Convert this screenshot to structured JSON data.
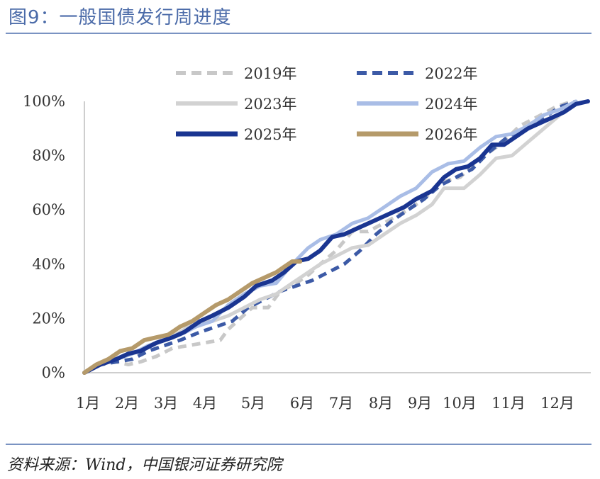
{
  "header": {
    "title": "图9：一般国债发行周进度"
  },
  "footer": {
    "source": "资料来源：Wind，中国银河证券研究院"
  },
  "chart_data": {
    "type": "line",
    "title": "图9：一般国债发行周进度",
    "ylim": [
      0,
      100
    ],
    "y_ticks": [
      "0%",
      "20%",
      "40%",
      "60%",
      "80%",
      "100%"
    ],
    "x_categories": [
      "1月",
      "2月",
      "3月",
      "4月",
      "5月",
      "6月",
      "7月",
      "8月",
      "9月",
      "10月",
      "11月",
      "12月"
    ],
    "x_range": [
      1,
      13.6
    ],
    "legend": {
      "placement": "top",
      "columns": 2
    },
    "grid": false,
    "series": [
      {
        "name": "2019年",
        "color": "#c8c8c8",
        "dash": "dashed",
        "width": 5,
        "points": [
          [
            1,
            0
          ],
          [
            1.4,
            3
          ],
          [
            1.8,
            4
          ],
          [
            2.1,
            3
          ],
          [
            2.4,
            4
          ],
          [
            2.8,
            6
          ],
          [
            3.2,
            9
          ],
          [
            3.6,
            10
          ],
          [
            4.0,
            11
          ],
          [
            4.4,
            12
          ],
          [
            4.6,
            16
          ],
          [
            4.9,
            20
          ],
          [
            5.2,
            24
          ],
          [
            5.6,
            24
          ],
          [
            5.9,
            30
          ],
          [
            6.3,
            33
          ],
          [
            6.6,
            36
          ],
          [
            6.9,
            40
          ],
          [
            7.3,
            45
          ],
          [
            7.7,
            52
          ],
          [
            8.1,
            52
          ],
          [
            8.6,
            56
          ],
          [
            9.1,
            60
          ],
          [
            9.5,
            64
          ],
          [
            9.9,
            70
          ],
          [
            10.4,
            72
          ],
          [
            10.9,
            79
          ],
          [
            11.4,
            84
          ],
          [
            11.9,
            91
          ],
          [
            12.3,
            94
          ],
          [
            12.8,
            98
          ],
          [
            13.2,
            100
          ]
        ]
      },
      {
        "name": "2022年",
        "color": "#3c5aa6",
        "dash": "dashed",
        "width": 5,
        "points": [
          [
            1,
            0
          ],
          [
            1.4,
            3
          ],
          [
            1.8,
            4
          ],
          [
            2.2,
            5
          ],
          [
            2.6,
            8
          ],
          [
            3.0,
            10
          ],
          [
            3.4,
            12
          ],
          [
            3.9,
            15
          ],
          [
            4.3,
            17
          ],
          [
            4.7,
            19
          ],
          [
            5.1,
            24
          ],
          [
            5.5,
            27
          ],
          [
            5.9,
            30
          ],
          [
            6.3,
            32
          ],
          [
            6.7,
            34
          ],
          [
            7.1,
            37
          ],
          [
            7.5,
            40
          ],
          [
            7.9,
            45
          ],
          [
            8.3,
            51
          ],
          [
            8.7,
            56
          ],
          [
            9.1,
            60
          ],
          [
            9.5,
            64
          ],
          [
            9.9,
            69
          ],
          [
            10.3,
            72
          ],
          [
            10.7,
            75
          ],
          [
            11.1,
            81
          ],
          [
            11.6,
            87
          ],
          [
            12.0,
            90
          ],
          [
            12.5,
            94
          ],
          [
            12.9,
            98
          ],
          [
            13.3,
            100
          ]
        ]
      },
      {
        "name": "2023年",
        "color": "#d2d2d2",
        "dash": "solid",
        "width": 5,
        "points": [
          [
            1,
            0
          ],
          [
            1.4,
            3
          ],
          [
            1.8,
            5
          ],
          [
            2.2,
            7
          ],
          [
            2.6,
            10
          ],
          [
            3.0,
            12
          ],
          [
            3.4,
            15
          ],
          [
            3.8,
            19
          ],
          [
            4.2,
            19
          ],
          [
            4.6,
            21
          ],
          [
            5.0,
            24
          ],
          [
            5.4,
            27
          ],
          [
            5.8,
            29
          ],
          [
            6.2,
            33
          ],
          [
            6.6,
            37
          ],
          [
            6.9,
            40
          ],
          [
            7.3,
            43
          ],
          [
            7.7,
            46
          ],
          [
            8.1,
            47
          ],
          [
            8.5,
            51
          ],
          [
            8.9,
            55
          ],
          [
            9.3,
            58
          ],
          [
            9.7,
            62
          ],
          [
            10.0,
            68
          ],
          [
            10.5,
            68
          ],
          [
            10.9,
            73
          ],
          [
            11.3,
            79
          ],
          [
            11.7,
            80
          ],
          [
            12.1,
            85
          ],
          [
            12.5,
            90
          ],
          [
            12.9,
            95
          ],
          [
            13.3,
            100
          ]
        ]
      },
      {
        "name": "2024年",
        "color": "#a9bde6",
        "dash": "solid",
        "width": 5,
        "points": [
          [
            1,
            0
          ],
          [
            1.4,
            3
          ],
          [
            1.8,
            5
          ],
          [
            2.2,
            7
          ],
          [
            2.6,
            10
          ],
          [
            3.0,
            12
          ],
          [
            3.4,
            14
          ],
          [
            3.8,
            17
          ],
          [
            4.2,
            19
          ],
          [
            4.6,
            25
          ],
          [
            5.0,
            29
          ],
          [
            5.4,
            32
          ],
          [
            5.8,
            33
          ],
          [
            6.2,
            40
          ],
          [
            6.6,
            46
          ],
          [
            6.9,
            49
          ],
          [
            7.3,
            51
          ],
          [
            7.7,
            55
          ],
          [
            8.1,
            57
          ],
          [
            8.5,
            61
          ],
          [
            8.9,
            65
          ],
          [
            9.3,
            68
          ],
          [
            9.7,
            74
          ],
          [
            10.1,
            77
          ],
          [
            10.5,
            78
          ],
          [
            10.9,
            83
          ],
          [
            11.3,
            87
          ],
          [
            11.7,
            88
          ],
          [
            12.1,
            91
          ],
          [
            12.5,
            95
          ],
          [
            12.9,
            97
          ],
          [
            13.3,
            100
          ]
        ]
      },
      {
        "name": "2025年",
        "color": "#1a3591",
        "dash": "solid",
        "width": 6,
        "points": [
          [
            1,
            0
          ],
          [
            1.4,
            3
          ],
          [
            1.8,
            5
          ],
          [
            2.1,
            7
          ],
          [
            2.4,
            8
          ],
          [
            2.8,
            11
          ],
          [
            3.2,
            13
          ],
          [
            3.5,
            15
          ],
          [
            3.9,
            19
          ],
          [
            4.2,
            21
          ],
          [
            4.6,
            24
          ],
          [
            5.0,
            28
          ],
          [
            5.3,
            32
          ],
          [
            5.7,
            34
          ],
          [
            6.0,
            37
          ],
          [
            6.3,
            41
          ],
          [
            6.6,
            42
          ],
          [
            6.9,
            45
          ],
          [
            7.2,
            50
          ],
          [
            7.5,
            51
          ],
          [
            7.8,
            53
          ],
          [
            8.1,
            55
          ],
          [
            8.4,
            57
          ],
          [
            8.7,
            59
          ],
          [
            9.0,
            61
          ],
          [
            9.3,
            64
          ],
          [
            9.7,
            67
          ],
          [
            10.0,
            72
          ],
          [
            10.3,
            75
          ],
          [
            10.6,
            76
          ],
          [
            10.9,
            79
          ],
          [
            11.2,
            84
          ],
          [
            11.5,
            84
          ],
          [
            11.8,
            87
          ],
          [
            12.1,
            90
          ],
          [
            12.4,
            92
          ],
          [
            12.7,
            94
          ],
          [
            13.0,
            96
          ],
          [
            13.3,
            99
          ],
          [
            13.6,
            100
          ]
        ]
      },
      {
        "name": "2026年",
        "color": "#b59a6a",
        "dash": "solid",
        "width": 6,
        "points": [
          [
            1,
            0
          ],
          [
            1.3,
            3
          ],
          [
            1.6,
            5
          ],
          [
            1.9,
            8
          ],
          [
            2.2,
            9
          ],
          [
            2.5,
            12
          ],
          [
            2.8,
            13
          ],
          [
            3.1,
            14
          ],
          [
            3.4,
            17
          ],
          [
            3.7,
            19
          ],
          [
            4.0,
            22
          ],
          [
            4.3,
            25
          ],
          [
            4.6,
            27
          ],
          [
            4.9,
            30
          ],
          [
            5.2,
            33
          ],
          [
            5.5,
            35
          ],
          [
            5.8,
            37
          ],
          [
            6.0,
            39
          ],
          [
            6.2,
            41
          ],
          [
            6.4,
            41
          ]
        ]
      }
    ]
  }
}
